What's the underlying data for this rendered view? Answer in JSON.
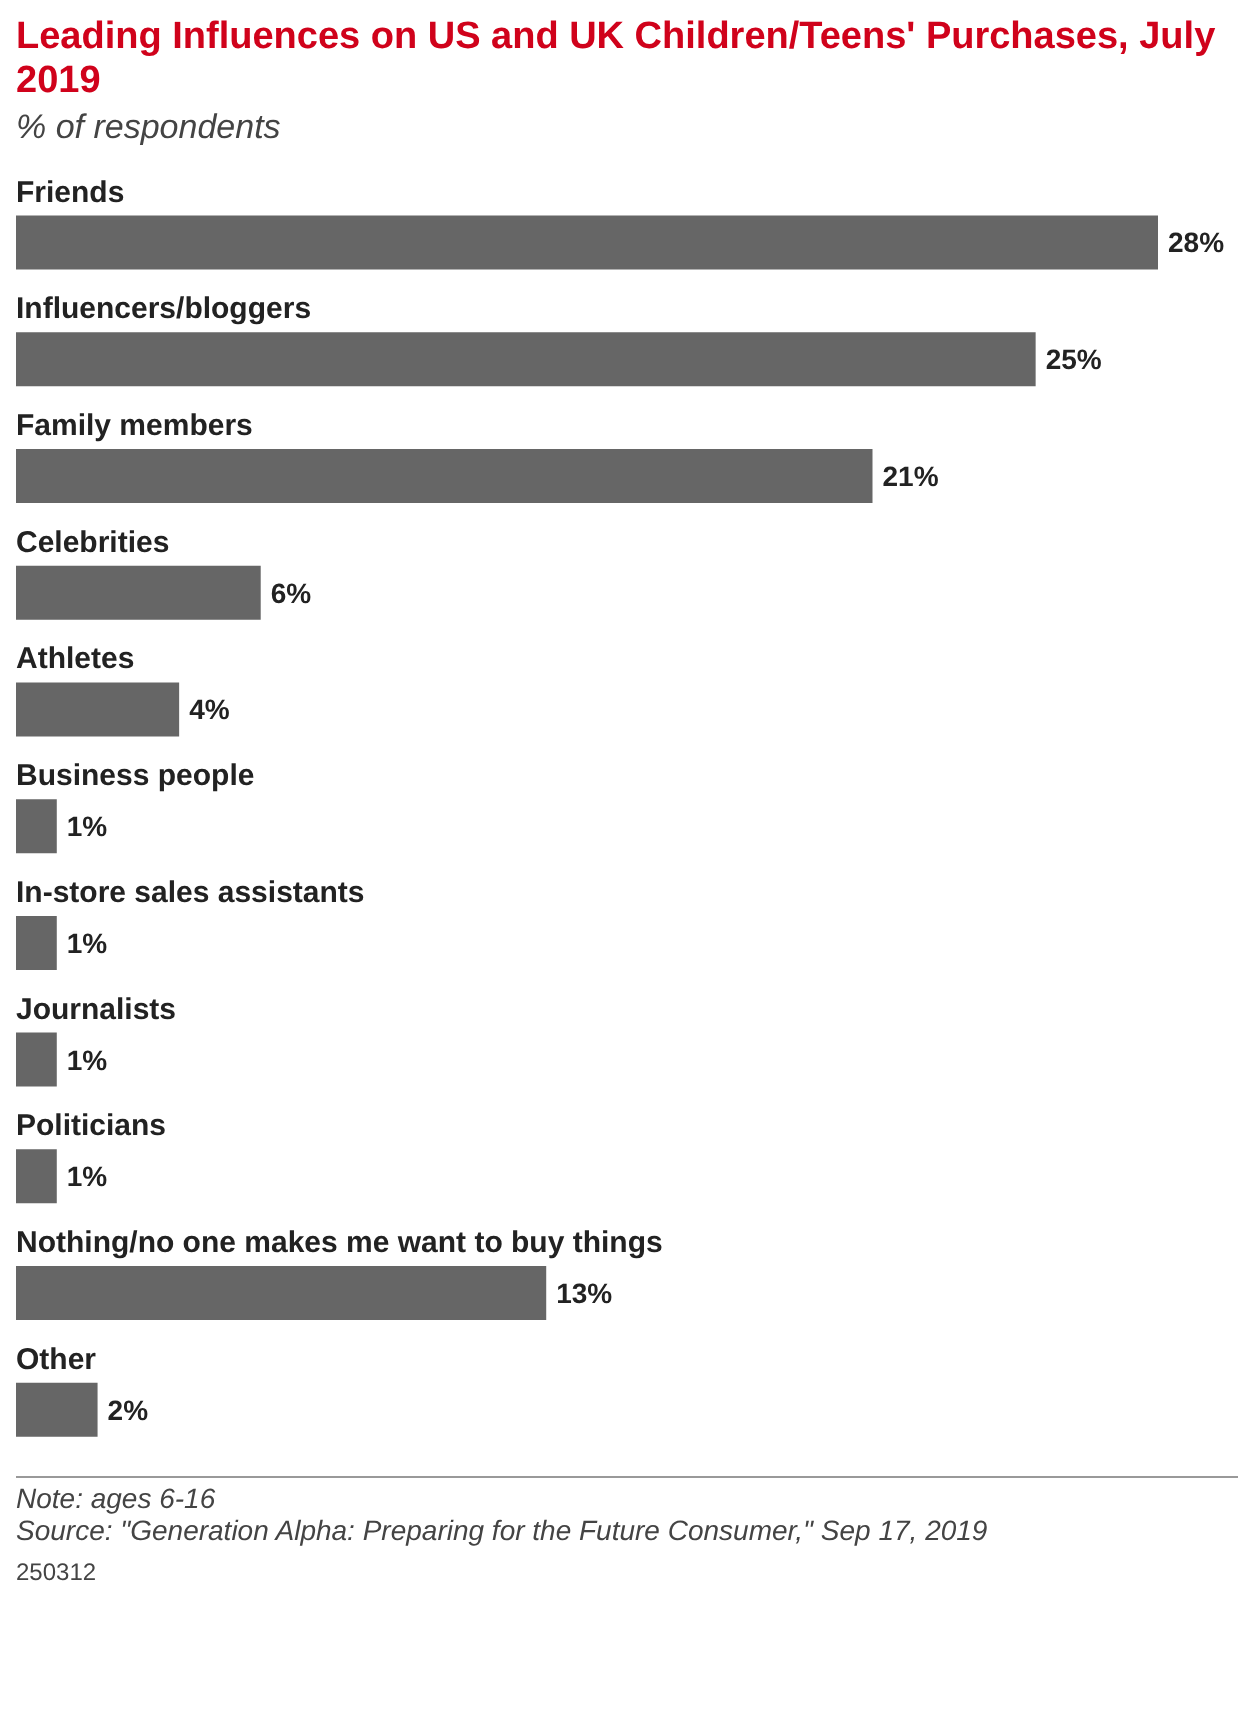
{
  "chart_data": {
    "type": "bar",
    "orientation": "horizontal",
    "title": "Leading Influences on US and UK Children/Teens' Purchases, July 2019",
    "subtitle": "% of respondents",
    "categories": [
      "Friends",
      "Influencers/bloggers",
      "Family members",
      "Celebrities",
      "Athletes",
      "Business people",
      "In-store sales assistants",
      "Journalists",
      "Politicians",
      "Nothing/no one makes me want to buy things",
      "Other"
    ],
    "values": [
      28,
      25,
      21,
      6,
      4,
      1,
      1,
      1,
      1,
      13,
      2
    ],
    "value_labels": [
      "28%",
      "25%",
      "21%",
      "6%",
      "4%",
      "1%",
      "1%",
      "1%",
      "1%",
      "13%",
      "2%"
    ],
    "color": "#666666",
    "annotations": [
      "Note: ages 6-16",
      "Source: \"Generation Alpha: Preparing for the Future Consumer,\" Sep 17, 2019",
      "250312"
    ]
  }
}
